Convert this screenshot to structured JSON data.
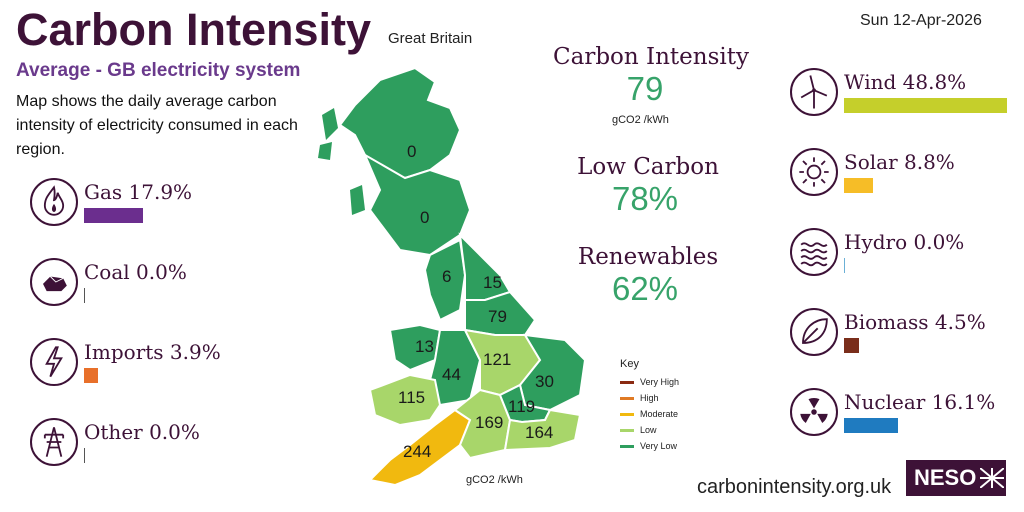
{
  "header": {
    "title": "Carbon Intensity",
    "region": "Great Britain",
    "subtitle": "Average - GB electricity system",
    "description": "Map shows the daily average carbon intensity of electricity consumed in each region.",
    "date": "Sun 12-Apr-2026"
  },
  "fuels_left": [
    {
      "label": "Gas 17.9%",
      "icon": "flame-icon",
      "percent": 17.9,
      "color": "#6b2e8e"
    },
    {
      "label": "Coal 0.0%",
      "icon": "coal-icon",
      "percent": 0.0,
      "color": "#555555"
    },
    {
      "label": "Imports 3.9%",
      "icon": "lightning-icon",
      "percent": 3.9,
      "color": "#e8702a"
    },
    {
      "label": "Other 0.0%",
      "icon": "pylon-icon",
      "percent": 0.0,
      "color": "#555555"
    }
  ],
  "fuels_right": [
    {
      "label": "Wind 48.8%",
      "icon": "wind-turbine-icon",
      "percent": 48.8,
      "color": "#c5cf2b"
    },
    {
      "label": "Solar 8.8%",
      "icon": "sun-icon",
      "percent": 8.8,
      "color": "#f6bd27"
    },
    {
      "label": "Hydro 0.0%",
      "icon": "water-waves-icon",
      "percent": 0.0,
      "color": "#6bb0d6"
    },
    {
      "label": "Biomass 4.5%",
      "icon": "leaf-icon",
      "percent": 4.5,
      "color": "#7a2e1b"
    },
    {
      "label": "Nuclear 16.1%",
      "icon": "radiation-icon",
      "percent": 16.1,
      "color": "#1f7bc0"
    }
  ],
  "stats": {
    "intensity": {
      "heading": "Carbon Intensity",
      "value": "79",
      "unit": "gCO2 /kWh"
    },
    "low_carbon": {
      "heading": "Low Carbon",
      "value": "78%"
    },
    "renewables": {
      "heading": "Renewables",
      "value": "62%"
    }
  },
  "key": {
    "title": "Key",
    "items": [
      {
        "label": "Very High",
        "color": "#8a2a12"
      },
      {
        "label": "High",
        "color": "#e07a24"
      },
      {
        "label": "Moderate",
        "color": "#f1b90f"
      },
      {
        "label": "Low",
        "color": "#a8d66a"
      },
      {
        "label": "Very Low",
        "color": "#2e9e5e"
      }
    ],
    "unit": "gCO2 /kWh"
  },
  "map_regions": [
    "0",
    "0",
    "6",
    "15",
    "79",
    "13",
    "44",
    "121",
    "30",
    "115",
    "119",
    "169",
    "164",
    "244"
  ],
  "footer": {
    "site": "carbonintensity.org.uk",
    "logo": "NESO"
  },
  "colors": {
    "brand": "#3d1237",
    "very_low": "#2e9e5e",
    "low": "#a8d66a",
    "moderate": "#f1b90f"
  }
}
